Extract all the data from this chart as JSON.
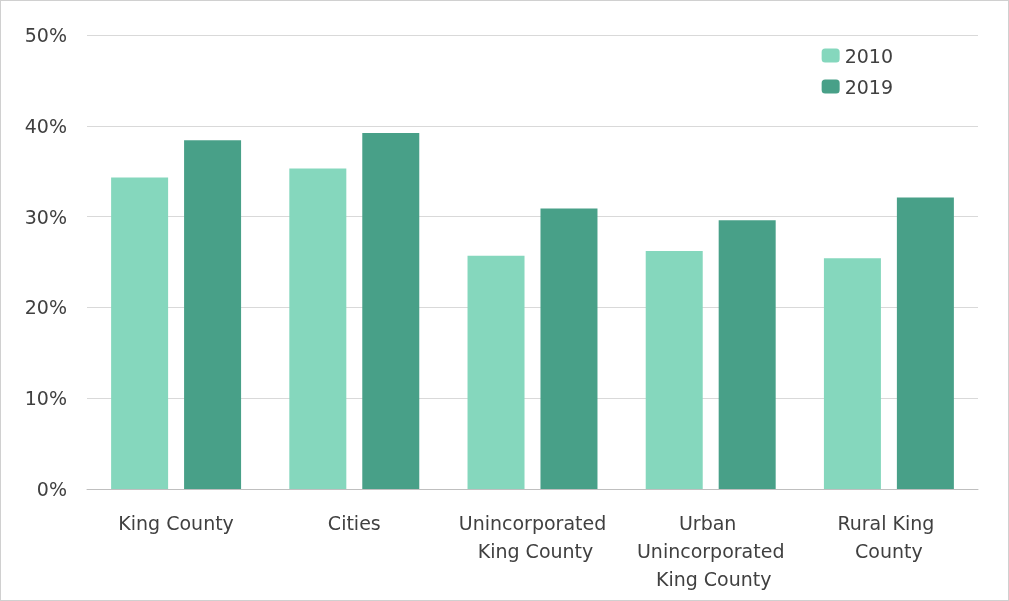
{
  "chart_data": {
    "type": "bar",
    "categories": [
      "King County",
      "Cities",
      "Unincorporated King County",
      "Urban Unincorporated King County",
      "Rural King County"
    ],
    "series": [
      {
        "name": "2010",
        "color": "#85d7bd",
        "values": [
          34.3,
          35.3,
          25.7,
          26.2,
          25.4
        ]
      },
      {
        "name": "2019",
        "color": "#48a088",
        "values": [
          38.4,
          39.2,
          30.9,
          29.6,
          32.1
        ]
      }
    ],
    "ylim": [
      0,
      50
    ],
    "yticks": [
      {
        "value": 0,
        "label": "0%"
      },
      {
        "value": 10,
        "label": "10%"
      },
      {
        "value": 20,
        "label": "20%"
      },
      {
        "value": 30,
        "label": "30%"
      },
      {
        "value": 40,
        "label": "40%"
      },
      {
        "value": 50,
        "label": "50%"
      }
    ],
    "grid": "y",
    "legend": "top right"
  }
}
